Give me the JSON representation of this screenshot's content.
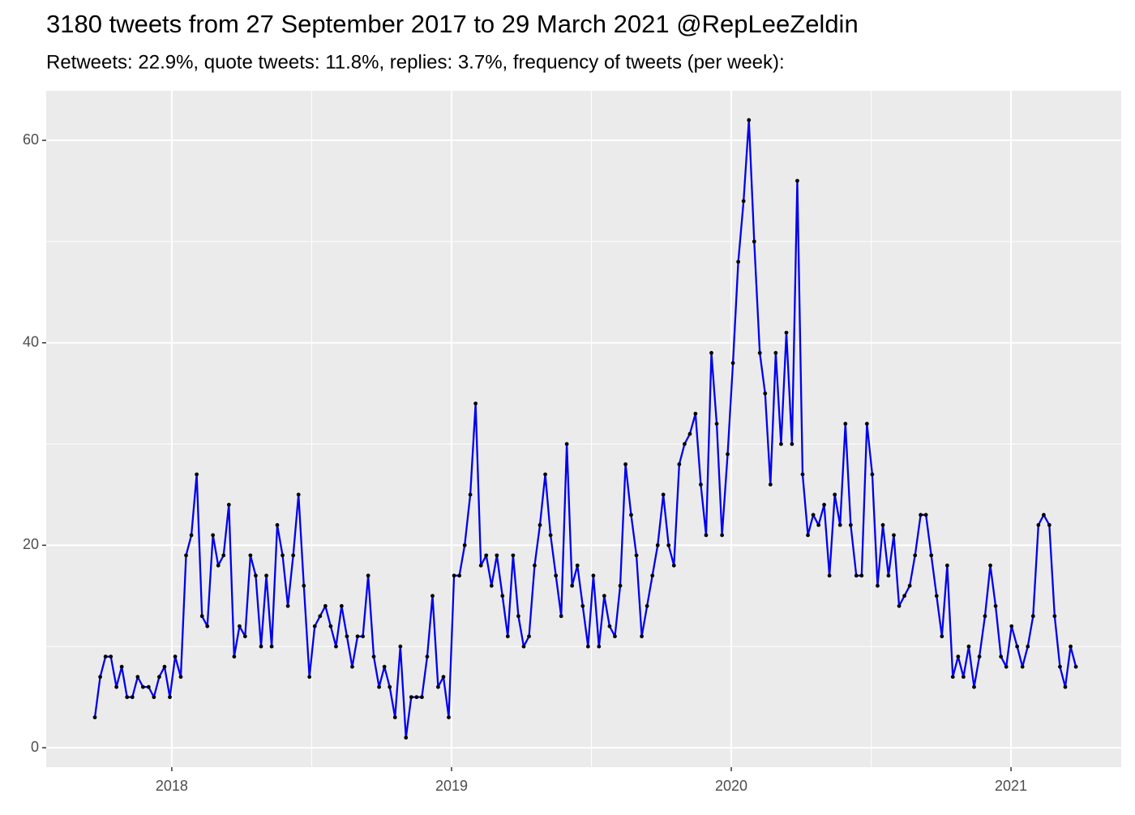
{
  "chart_data": {
    "type": "line",
    "title": "3180 tweets from 27 September 2017 to 29 March 2021 @RepLeeZeldin",
    "subtitle": "Retweets: 22.9%, quote tweets: 11.8%, replies: 3.7%, frequency of tweets (per week):",
    "x": [
      2017.725,
      2017.744,
      2017.763,
      2017.782,
      2017.802,
      2017.821,
      2017.84,
      2017.859,
      2017.878,
      2017.897,
      2017.917,
      2017.936,
      2017.955,
      2017.974,
      2017.993,
      2018.012,
      2018.032,
      2018.051,
      2018.07,
      2018.089,
      2018.108,
      2018.127,
      2018.147,
      2018.166,
      2018.185,
      2018.204,
      2018.223,
      2018.242,
      2018.262,
      2018.281,
      2018.3,
      2018.319,
      2018.338,
      2018.357,
      2018.377,
      2018.396,
      2018.415,
      2018.434,
      2018.453,
      2018.472,
      2018.492,
      2018.511,
      2018.53,
      2018.549,
      2018.568,
      2018.587,
      2018.607,
      2018.626,
      2018.645,
      2018.664,
      2018.683,
      2018.702,
      2018.722,
      2018.741,
      2018.76,
      2018.779,
      2018.798,
      2018.817,
      2018.837,
      2018.856,
      2018.875,
      2018.894,
      2018.913,
      2018.932,
      2018.952,
      2018.971,
      2018.99,
      2019.009,
      2019.028,
      2019.047,
      2019.067,
      2019.086,
      2019.105,
      2019.124,
      2019.143,
      2019.162,
      2019.182,
      2019.201,
      2019.22,
      2019.239,
      2019.258,
      2019.277,
      2019.297,
      2019.316,
      2019.335,
      2019.354,
      2019.373,
      2019.392,
      2019.412,
      2019.431,
      2019.45,
      2019.469,
      2019.488,
      2019.507,
      2019.527,
      2019.546,
      2019.565,
      2019.584,
      2019.603,
      2019.622,
      2019.642,
      2019.661,
      2019.68,
      2019.699,
      2019.718,
      2019.737,
      2019.757,
      2019.776,
      2019.795,
      2019.814,
      2019.833,
      2019.852,
      2019.872,
      2019.891,
      2019.91,
      2019.929,
      2019.948,
      2019.967,
      2019.987,
      2020.006,
      2020.025,
      2020.044,
      2020.063,
      2020.082,
      2020.102,
      2020.121,
      2020.14,
      2020.159,
      2020.178,
      2020.197,
      2020.217,
      2020.236,
      2020.255,
      2020.274,
      2020.293,
      2020.312,
      2020.332,
      2020.351,
      2020.37,
      2020.389,
      2020.408,
      2020.427,
      2020.447,
      2020.466,
      2020.485,
      2020.504,
      2020.523,
      2020.542,
      2020.562,
      2020.581,
      2020.6,
      2020.619,
      2020.638,
      2020.657,
      2020.677,
      2020.696,
      2020.715,
      2020.734,
      2020.753,
      2020.772,
      2020.792,
      2020.811,
      2020.83,
      2020.849,
      2020.868,
      2020.887,
      2020.907,
      2020.926,
      2020.945,
      2020.964,
      2020.983,
      2021.002,
      2021.022,
      2021.041,
      2021.06,
      2021.079,
      2021.098,
      2021.117,
      2021.137,
      2021.156,
      2021.175,
      2021.194,
      2021.213,
      2021.232
    ],
    "series": [
      {
        "color": "#0000ee",
        "values": [
          3,
          7,
          9,
          9,
          6,
          8,
          5,
          5,
          7,
          6,
          6,
          5,
          7,
          8,
          5,
          9,
          7,
          19,
          21,
          27,
          13,
          12,
          21,
          18,
          19,
          24,
          9,
          12,
          11,
          19,
          17,
          10,
          17,
          10,
          22,
          19,
          14,
          19,
          25,
          16,
          7,
          12,
          13,
          14,
          12,
          10,
          14,
          11,
          8,
          11,
          11,
          17,
          9,
          6,
          8,
          6,
          3,
          10,
          1,
          5,
          5,
          5,
          9,
          15,
          6,
          7,
          3,
          17,
          17,
          20,
          25,
          34,
          18,
          19,
          16,
          19,
          15,
          11,
          19,
          13,
          10,
          11,
          18,
          22,
          27,
          21,
          17,
          13,
          30,
          16,
          18,
          14,
          10,
          17,
          10,
          15,
          12,
          11,
          16,
          28,
          23,
          19,
          11,
          14,
          17,
          20,
          25,
          20,
          18,
          28,
          30,
          31,
          33,
          26,
          21,
          39,
          32,
          21,
          29,
          38,
          48,
          54,
          62,
          50,
          39,
          35,
          26,
          39,
          30,
          41,
          30,
          56,
          27,
          21,
          23,
          22,
          24,
          17,
          25,
          22,
          32,
          22,
          17,
          17,
          32,
          27,
          16,
          22,
          17,
          21,
          14,
          15,
          16,
          19,
          23,
          23,
          19,
          15,
          11,
          18,
          7,
          9,
          7,
          10,
          6,
          9,
          13,
          18,
          14,
          9,
          8,
          12,
          10,
          8,
          10,
          13,
          22,
          23,
          22,
          13,
          8,
          6,
          10,
          8
        ]
      }
    ],
    "point_color": "#000000",
    "xlim": [
      2017.551,
      2021.394
    ],
    "xticks": [
      2018,
      2019,
      2020,
      2021
    ],
    "ylim": [
      -1.92,
      64.89
    ],
    "yticks": [
      0,
      20,
      40,
      60
    ],
    "grid": true,
    "minor_grid": true
  }
}
